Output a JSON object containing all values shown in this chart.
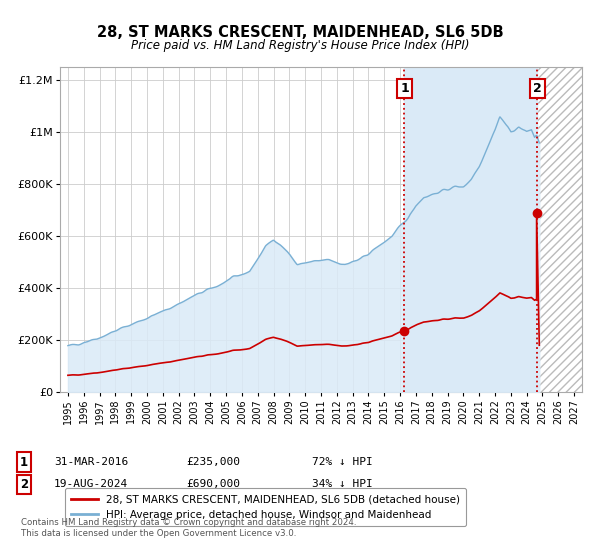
{
  "title": "28, ST MARKS CRESCENT, MAIDENHEAD, SL6 5DB",
  "subtitle": "Price paid vs. HM Land Registry's House Price Index (HPI)",
  "legend_line1": "28, ST MARKS CRESCENT, MAIDENHEAD, SL6 5DB (detached house)",
  "legend_line2": "HPI: Average price, detached house, Windsor and Maidenhead",
  "annotation1_date": "31-MAR-2016",
  "annotation1_price": "£235,000",
  "annotation1_hpi": "72% ↓ HPI",
  "annotation2_date": "19-AUG-2024",
  "annotation2_price": "£690,000",
  "annotation2_hpi": "34% ↓ HPI",
  "footer1": "Contains HM Land Registry data © Crown copyright and database right 2024.",
  "footer2": "This data is licensed under the Open Government Licence v3.0.",
  "transaction_color": "#cc0000",
  "hpi_color": "#7ab0d4",
  "hpi_fill_color": "#daeaf7",
  "shaded_color": "#daeaf7",
  "hatch_color": "#cccccc",
  "marker1_x": 2016.25,
  "marker1_y": 235000,
  "marker2_x": 2024.63,
  "marker2_y": 690000,
  "vline1_x": 2016.25,
  "vline2_x": 2024.63,
  "ylim": [
    0,
    1250000
  ],
  "xlim": [
    1994.5,
    2027.5
  ],
  "xlabel_ticks": [
    1995,
    1996,
    1997,
    1998,
    1999,
    2000,
    2001,
    2002,
    2003,
    2004,
    2005,
    2006,
    2007,
    2008,
    2009,
    2010,
    2011,
    2012,
    2013,
    2014,
    2015,
    2016,
    2017,
    2018,
    2019,
    2020,
    2021,
    2022,
    2023,
    2024,
    2025,
    2026,
    2027
  ],
  "ytick_values": [
    0,
    200000,
    400000,
    600000,
    800000,
    1000000,
    1200000
  ],
  "ytick_labels": [
    "£0",
    "£200K",
    "£400K",
    "£600K",
    "£800K",
    "£1M",
    "£1.2M"
  ]
}
